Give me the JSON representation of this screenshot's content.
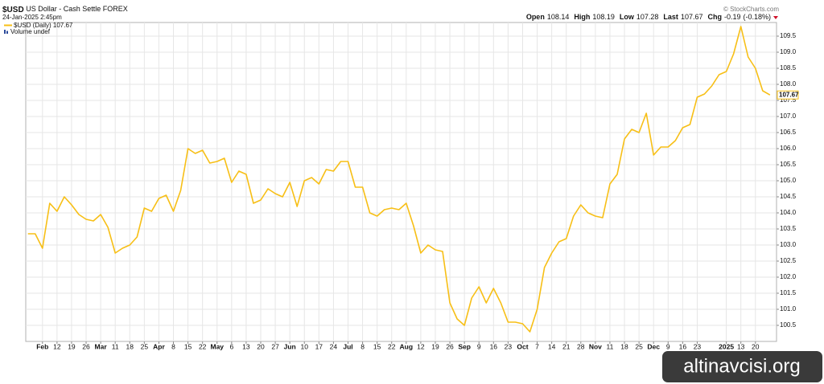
{
  "chart_data": {
    "type": "line",
    "title": "$USD",
    "title_suffix": "US Dollar - Cash Settle FOREX",
    "date": "24-Jan-2025 2:45pm",
    "credit": "© StockCharts.com",
    "quote": [
      {
        "label": "Open",
        "value": 108.14
      },
      {
        "label": "High",
        "value": 108.19
      },
      {
        "label": "Low",
        "value": 107.28
      },
      {
        "label": "Last",
        "value": 107.67
      },
      {
        "label": "Chg",
        "value": -0.19,
        "pct": "(-0.18%)"
      }
    ],
    "volume_legend": "Volume undef",
    "watermark": "altinavcisi.org",
    "grid": true,
    "categories": [
      null,
      null,
      "Feb",
      null,
      "12",
      null,
      "19",
      null,
      "26",
      null,
      "Mar",
      null,
      "11",
      null,
      "18",
      null,
      "25",
      null,
      "Apr",
      null,
      "8",
      null,
      "15",
      null,
      "22",
      null,
      "May",
      null,
      "6",
      null,
      "13",
      null,
      "20",
      null,
      "27",
      null,
      "Jun",
      null,
      "10",
      null,
      "17",
      null,
      "24",
      null,
      "Jul",
      null,
      "8",
      null,
      "15",
      null,
      "22",
      null,
      "Aug",
      null,
      "12",
      null,
      "19",
      null,
      "26",
      null,
      "Sep",
      null,
      "9",
      null,
      "16",
      null,
      "23",
      null,
      "Oct",
      null,
      "7",
      null,
      "14",
      null,
      "21",
      null,
      "28",
      null,
      "Nov",
      null,
      "11",
      null,
      "18",
      null,
      "25",
      null,
      "Dec",
      null,
      "9",
      null,
      "16",
      null,
      "23",
      null,
      null,
      null,
      "2025",
      null,
      "13",
      null,
      "20",
      null,
      null
    ],
    "series": [
      {
        "name": "$USD (Daily)",
        "color": "#f7bf16",
        "values": [
          103.35,
          103.35,
          102.9,
          104.3,
          104.05,
          104.5,
          104.25,
          103.95,
          103.8,
          103.75,
          103.95,
          103.55,
          102.75,
          102.9,
          103.0,
          103.25,
          104.15,
          104.05,
          104.45,
          104.55,
          104.05,
          104.7,
          106.0,
          105.85,
          105.95,
          105.55,
          105.6,
          105.7,
          104.95,
          105.3,
          105.2,
          104.3,
          104.4,
          104.75,
          104.6,
          104.5,
          104.95,
          104.2,
          105.0,
          105.1,
          104.9,
          105.35,
          105.3,
          105.6,
          105.6,
          104.8,
          104.8,
          104.0,
          103.9,
          104.1,
          104.15,
          104.1,
          104.3,
          103.6,
          102.75,
          103.0,
          102.85,
          102.8,
          101.2,
          100.7,
          100.5,
          101.35,
          101.7,
          101.2,
          101.65,
          101.2,
          100.6,
          100.6,
          100.55,
          100.3,
          101.0,
          102.3,
          102.75,
          103.1,
          103.2,
          103.9,
          104.25,
          104.0,
          103.9,
          103.85,
          104.9,
          105.2,
          106.3,
          106.6,
          106.5,
          107.1,
          105.8,
          106.05,
          106.05,
          106.25,
          106.65,
          106.75,
          107.6,
          107.7,
          107.95,
          108.3,
          108.4,
          108.95,
          109.8,
          108.85,
          108.5,
          107.8,
          107.67
        ]
      }
    ],
    "ylim": [
      100.0,
      109.925
    ],
    "yticks": [
      100.5,
      {
        "value": 101,
        "label": "101.0"
      },
      101.5,
      {
        "value": 102,
        "label": "102.0"
      },
      102.5,
      {
        "value": 103,
        "label": "103.0"
      },
      103.5,
      {
        "value": 104,
        "label": "104.0"
      },
      104.5,
      {
        "value": 105,
        "label": "105.0"
      },
      105.5,
      {
        "value": 106,
        "label": "106.0"
      },
      106.5,
      {
        "value": 107,
        "label": "107.0"
      },
      107.5,
      {
        "value": 108,
        "label": "108.0"
      },
      108.5,
      {
        "value": 109,
        "label": "109.0"
      },
      109.5
    ]
  }
}
